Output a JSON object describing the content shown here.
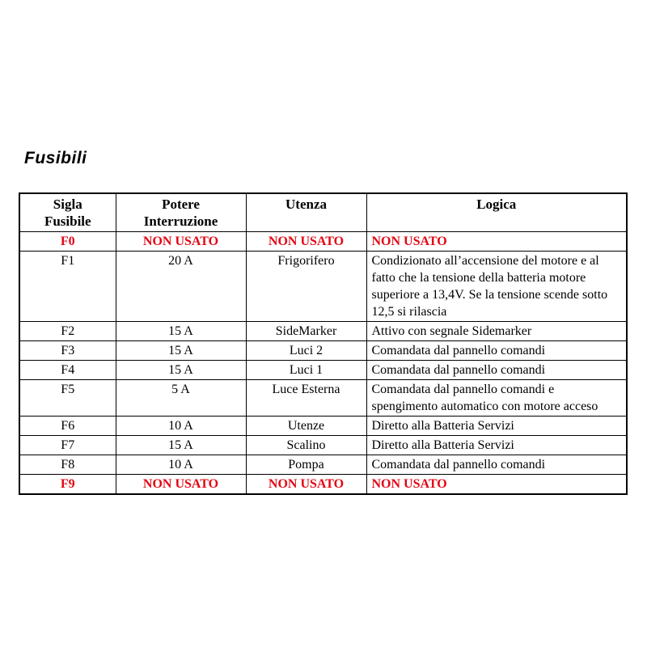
{
  "page": {
    "title": "Fusibili"
  },
  "colors": {
    "unused_red": "#e30613",
    "text": "#000000",
    "border": "#000000",
    "background": "#ffffff"
  },
  "table": {
    "columns": [
      {
        "key": "sigla",
        "label": "Sigla\nFusibile"
      },
      {
        "key": "potere",
        "label": "Potere\nInterruzione"
      },
      {
        "key": "utenza",
        "label": "Utenza"
      },
      {
        "key": "logica",
        "label": "Logica"
      }
    ],
    "rows": [
      {
        "sigla": "F0",
        "potere": "NON USATO",
        "utenza": "NON USATO",
        "logica": "NON USATO",
        "unused": true
      },
      {
        "sigla": "F1",
        "potere": "20 A",
        "utenza": "Frigorifero",
        "logica": "Condizionato all’accensione del motore e al fatto che la tensione della batteria motore superiore a 13,4V. Se la tensione scende sotto 12,5 si rilascia",
        "unused": false
      },
      {
        "sigla": "F2",
        "potere": "15 A",
        "utenza": "SideMarker",
        "logica": "Attivo con segnale Sidemarker",
        "unused": false
      },
      {
        "sigla": "F3",
        "potere": "15 A",
        "utenza": "Luci 2",
        "logica": "Comandata dal pannello comandi",
        "unused": false
      },
      {
        "sigla": "F4",
        "potere": "15 A",
        "utenza": "Luci 1",
        "logica": "Comandata dal pannello comandi",
        "unused": false
      },
      {
        "sigla": "F5",
        "potere": "5 A",
        "utenza": "Luce Esterna",
        "logica": "Comandata dal pannello comandi e spengimento automatico con motore acceso",
        "unused": false
      },
      {
        "sigla": "F6",
        "potere": "10 A",
        "utenza": "Utenze",
        "logica": "Diretto alla Batteria Servizi",
        "unused": false
      },
      {
        "sigla": "F7",
        "potere": "15 A",
        "utenza": "Scalino",
        "logica": "Diretto alla Batteria Servizi",
        "unused": false
      },
      {
        "sigla": "F8",
        "potere": "10 A",
        "utenza": "Pompa",
        "logica": "Comandata dal pannello comandi",
        "unused": false
      },
      {
        "sigla": "F9",
        "potere": "NON USATO",
        "utenza": "NON USATO",
        "logica": "NON USATO",
        "unused": true
      }
    ]
  }
}
